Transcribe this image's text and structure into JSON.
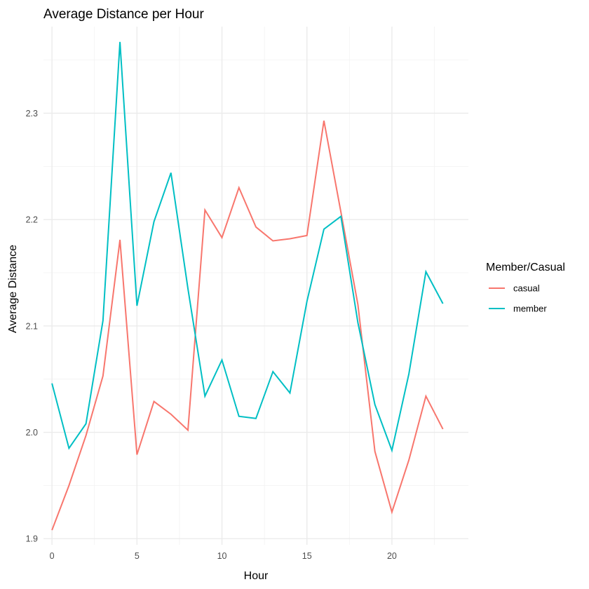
{
  "chart_data": {
    "type": "line",
    "title": "Average Distance per Hour",
    "xlabel": "Hour",
    "ylabel": "Average Distance",
    "xlim": [
      -0.5,
      24.5
    ],
    "ylim": [
      1.8942,
      2.3814
    ],
    "x_ticks": [
      0,
      5,
      10,
      15,
      20
    ],
    "x_tick_labels": [
      "0",
      "5",
      "10",
      "15",
      "20"
    ],
    "y_ticks": [
      1.9,
      2.0,
      2.1,
      2.2,
      2.3
    ],
    "y_tick_labels": [
      "1.9",
      "2.0",
      "2.1",
      "2.2",
      "2.3"
    ],
    "grid": true,
    "legend": {
      "title": "Member/Casual",
      "position": "right"
    },
    "x": [
      0,
      1,
      2,
      3,
      4,
      5,
      6,
      7,
      8,
      9,
      10,
      11,
      12,
      13,
      14,
      15,
      16,
      17,
      18,
      19,
      20,
      21,
      22,
      23
    ],
    "series": [
      {
        "name": "casual",
        "color": "#F8766D",
        "values": [
          1.908,
          1.95,
          1.997,
          2.053,
          2.181,
          1.979,
          2.029,
          2.017,
          2.002,
          2.209,
          2.183,
          2.23,
          2.193,
          2.18,
          2.182,
          2.185,
          2.293,
          2.207,
          2.12,
          1.982,
          1.925,
          1.974,
          2.034,
          2.003
        ]
      },
      {
        "name": "member",
        "color": "#00BFC4",
        "values": [
          2.046,
          1.985,
          2.008,
          2.105,
          2.367,
          2.119,
          2.198,
          2.244,
          2.135,
          2.034,
          2.068,
          2.015,
          2.013,
          2.057,
          2.037,
          2.123,
          2.191,
          2.203,
          2.103,
          2.026,
          1.983,
          2.055,
          2.151,
          2.121
        ]
      }
    ]
  }
}
